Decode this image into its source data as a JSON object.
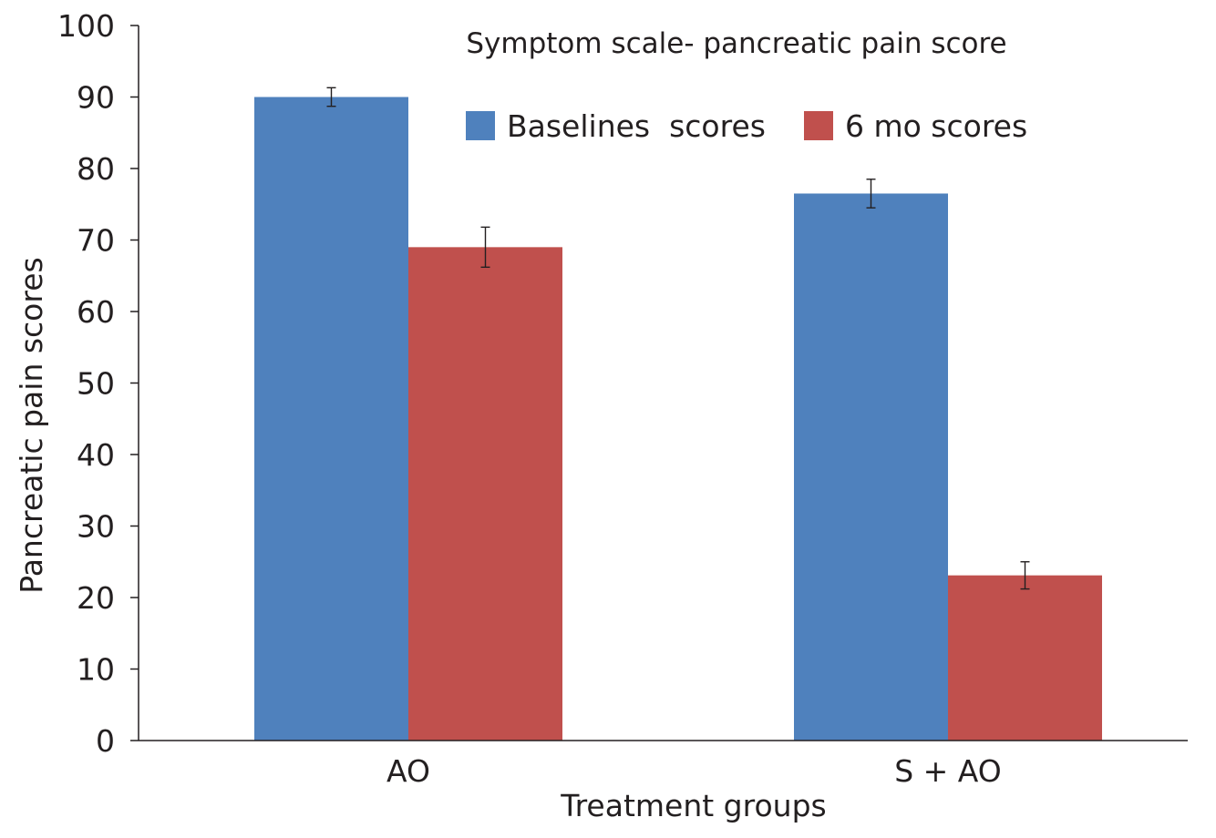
{
  "chart_data": {
    "type": "bar",
    "title": "Symptom scale- pancreatic pain score",
    "xlabel": "Treatment groups",
    "ylabel": "Pancreatic pain scores",
    "categories": [
      "AO",
      "S + AO"
    ],
    "series": [
      {
        "name": "Baselines  scores",
        "color": "#4f81bd",
        "values": [
          90,
          76.5
        ],
        "error": [
          1.3,
          2.0
        ]
      },
      {
        "name": "6 mo scores",
        "color": "#c0504d",
        "values": [
          69,
          23.1
        ],
        "error": [
          2.8,
          1.9
        ]
      }
    ],
    "ylim": [
      0,
      100
    ],
    "yticks": [
      0,
      10,
      20,
      30,
      40,
      50,
      60,
      70,
      80,
      90,
      100
    ],
    "grid": false,
    "legend_position": "top-right"
  }
}
